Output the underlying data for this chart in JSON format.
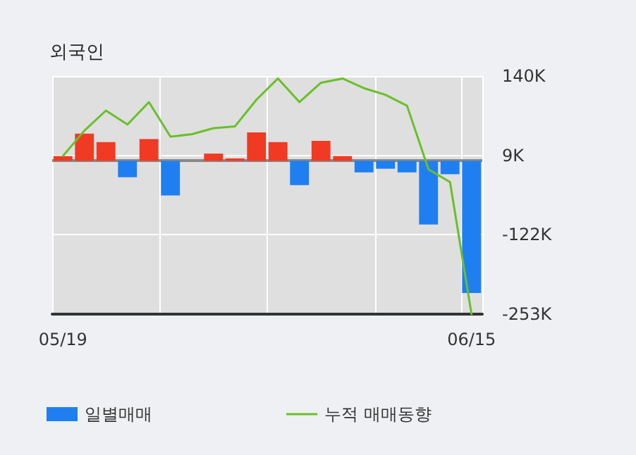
{
  "chart_data": {
    "type": "bar",
    "title": "외국인",
    "categories": [
      "05/19",
      null,
      null,
      null,
      null,
      null,
      null,
      null,
      null,
      null,
      null,
      null,
      null,
      null,
      null,
      null,
      null,
      null,
      null,
      "06/15"
    ],
    "series": [
      {
        "name": "일별매매",
        "color": "#1f7ff0",
        "colors": [
          "#f03a24",
          "#f03a24",
          "#f03a24",
          "#1f7ff0",
          "#f03a24",
          "#1f7ff0",
          "#f03a24",
          "#f03a24",
          "#f03a24",
          "#f03a24",
          "#f03a24",
          "#1f7ff0",
          "#f03a24",
          "#f03a24",
          "#1f7ff0",
          "#1f7ff0",
          "#1f7ff0",
          "#1f7ff0",
          "#1f7ff0",
          "#1f7ff0"
        ],
        "values": [
          8,
          45,
          31,
          -27,
          36,
          -57,
          0,
          12,
          4,
          47,
          31,
          -40,
          33,
          8,
          -19,
          -13,
          -19,
          -105,
          -22,
          -218
        ]
      },
      {
        "name": "누적 매매동향",
        "type": "line",
        "color": "#6abf2a",
        "values": [
          8,
          50,
          83,
          60,
          97,
          40,
          44,
          54,
          57,
          101,
          136,
          97,
          129,
          136,
          120,
          109,
          91,
          -14,
          -35,
          -253
        ]
      }
    ],
    "ylim": [
      -253,
      140
    ],
    "yticks": [
      {
        "value": 140,
        "label": "140K"
      },
      {
        "value": 9,
        "label": "9K"
      },
      {
        "value": -122,
        "label": "-122K"
      },
      {
        "value": -253,
        "label": "-253K"
      }
    ],
    "grid": true,
    "legend": "bottom",
    "marker": "none",
    "line_style": "solid"
  }
}
